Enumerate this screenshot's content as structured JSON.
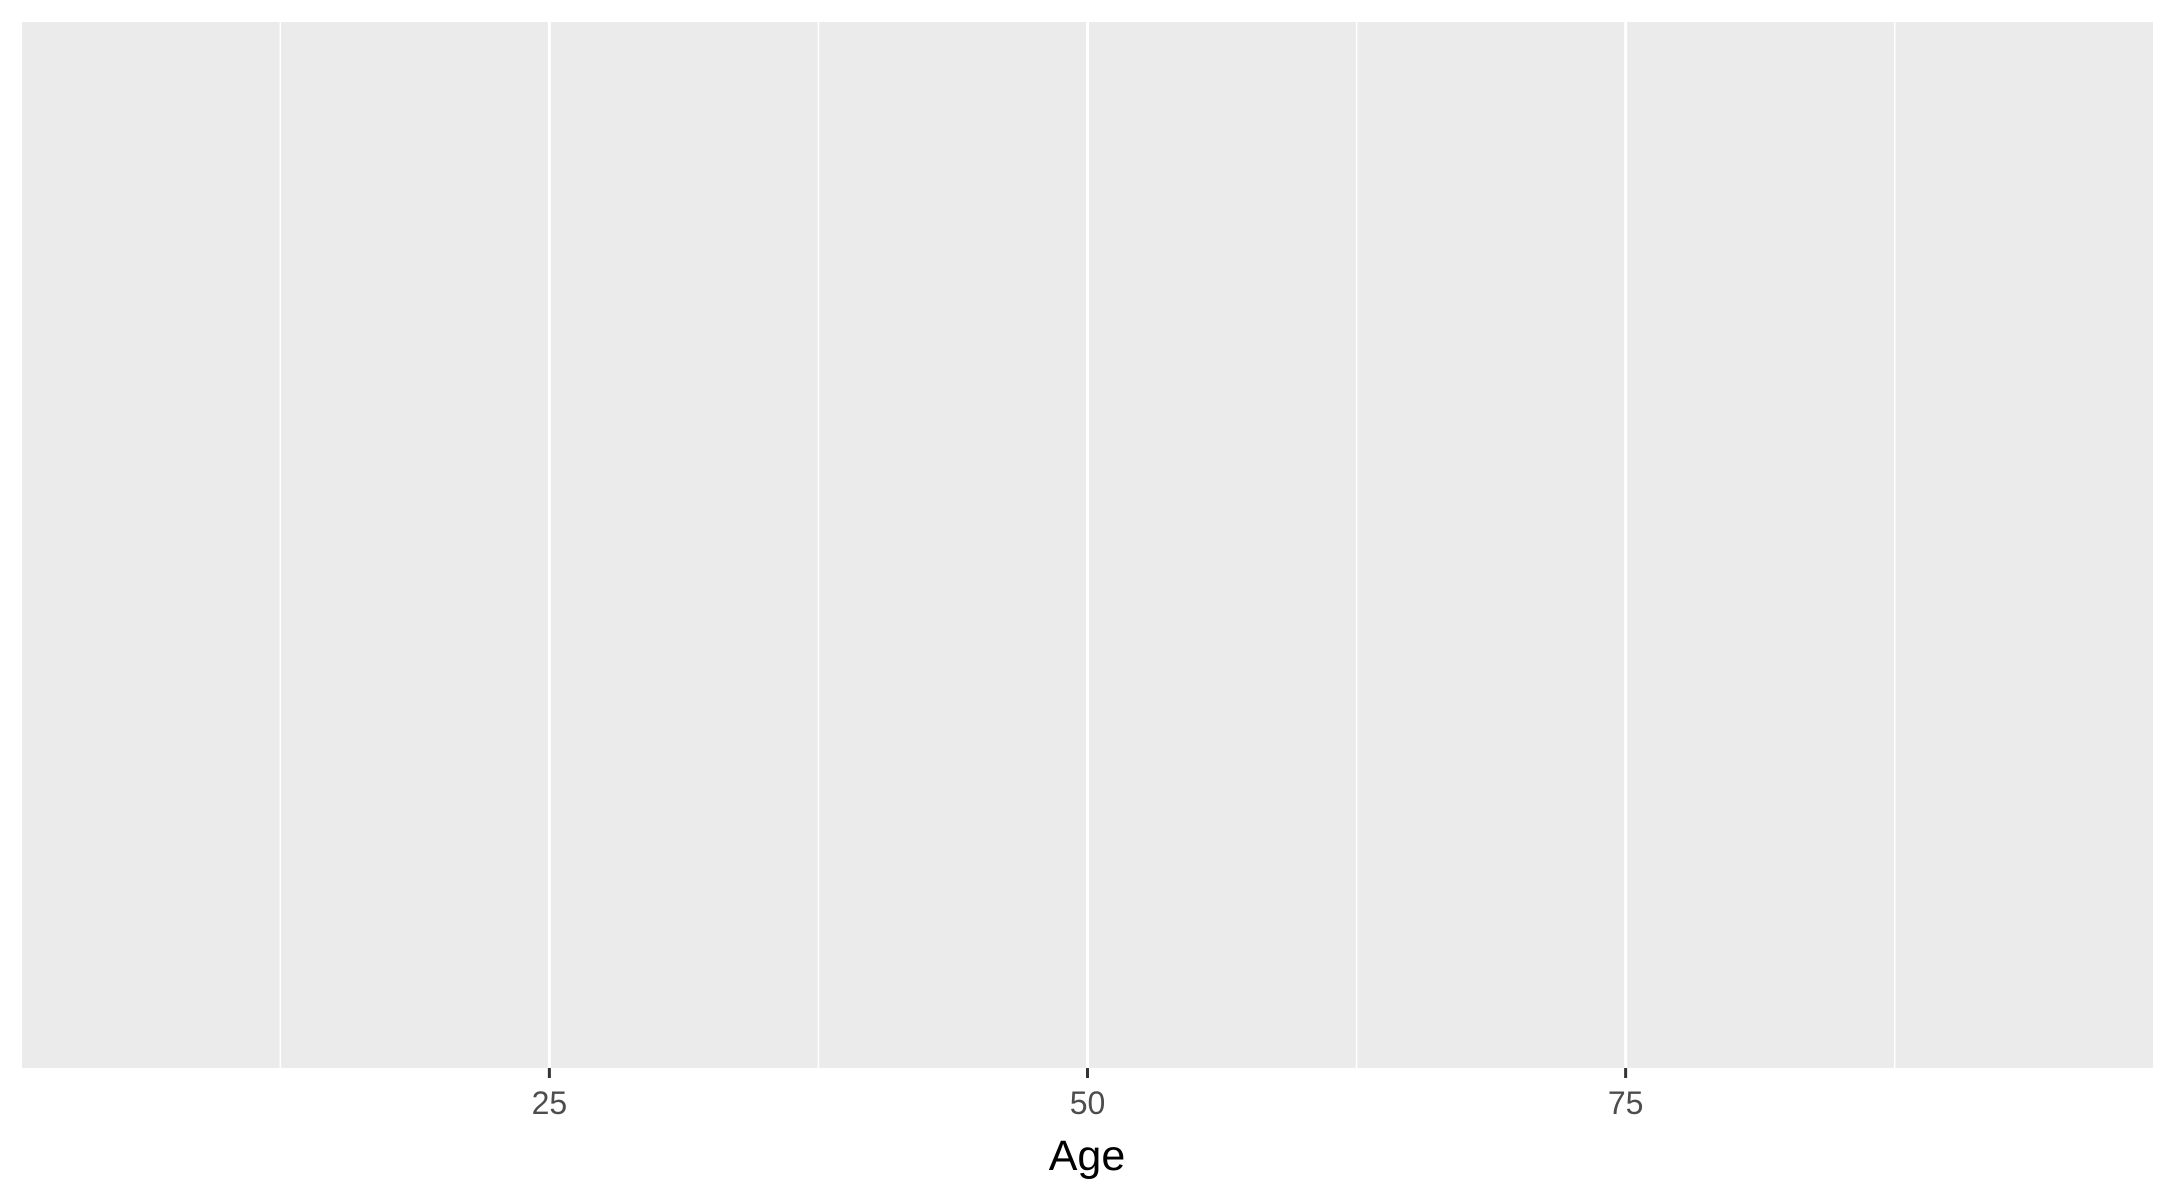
{
  "chart_data": {
    "type": "scatter",
    "title": "",
    "xlabel": "Age",
    "ylabel": "",
    "xlim": [
      0.5,
      99.5
    ],
    "x_major_ticks": [
      25,
      50,
      75
    ],
    "x_minor_ticks": [
      12.5,
      37.5,
      62.5,
      87.5
    ],
    "x_tick_labels": [
      "25",
      "50",
      "75"
    ],
    "grid": true,
    "legend": "none",
    "series": [],
    "colors": {
      "panel_background": "#ebebeb",
      "grid_line": "#ffffff",
      "tick_mark": "#333333",
      "tick_label": "#4d4d4d",
      "axis_title": "#000000"
    }
  }
}
